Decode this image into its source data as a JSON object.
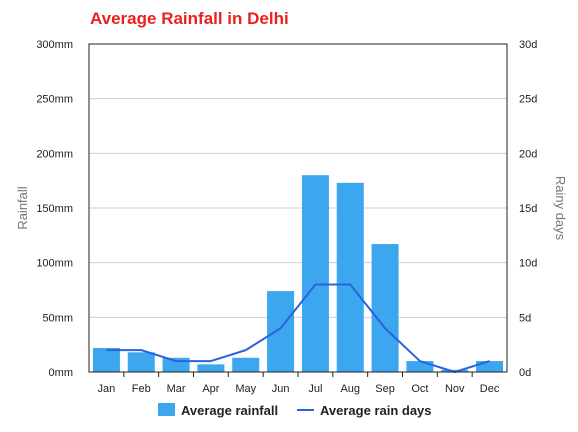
{
  "chart_data": {
    "type": "bar",
    "title": "Average Rainfall in Delhi",
    "categories": [
      "Jan",
      "Feb",
      "Mar",
      "Apr",
      "May",
      "Jun",
      "Jul",
      "Aug",
      "Sep",
      "Oct",
      "Nov",
      "Dec"
    ],
    "series": [
      {
        "name": "Average rainfall",
        "type": "bar",
        "axis": "left",
        "color": "#3ca6ef",
        "values": [
          22,
          18,
          13,
          7,
          13,
          74,
          180,
          173,
          117,
          10,
          2,
          10
        ]
      },
      {
        "name": "Average rain days",
        "type": "line",
        "axis": "right",
        "color": "#2b63dc",
        "values": [
          2,
          2,
          1,
          1,
          2,
          4,
          8,
          8,
          4,
          1,
          0,
          1
        ]
      }
    ],
    "ylabel": "Rainfall",
    "y2label": "Rainy days",
    "ylim": [
      0,
      300
    ],
    "y2lim": [
      0,
      30
    ],
    "yticks": [
      "0mm",
      "50mm",
      "100mm",
      "150mm",
      "200mm",
      "250mm",
      "300mm"
    ],
    "y2ticks": [
      "0d",
      "5d",
      "10d",
      "15d",
      "20d",
      "25d",
      "30d"
    ],
    "grid": true,
    "legend": "bottom"
  }
}
